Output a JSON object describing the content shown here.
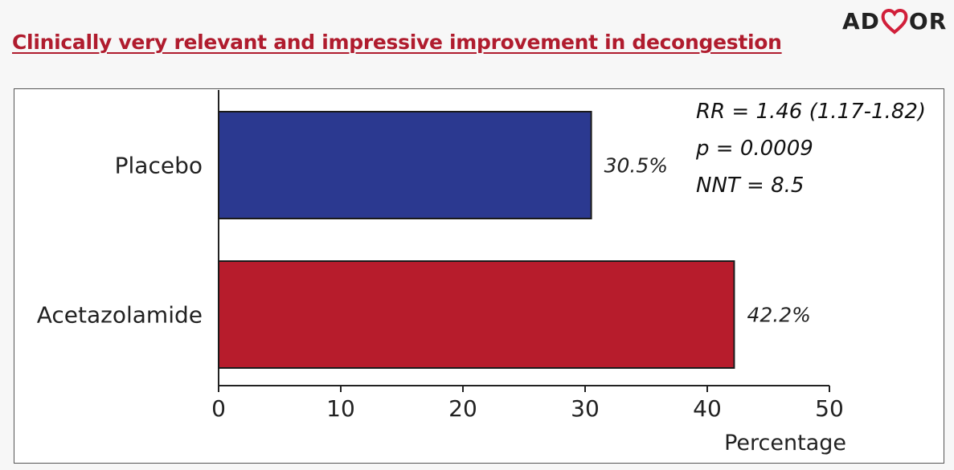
{
  "slide": {
    "title": "Clinically very relevant and impressive improvement in decongestion",
    "logo": {
      "text_left": "AD",
      "text_right": "OR",
      "icon": "heart-icon",
      "heart_color": "#d11f3a"
    },
    "stats": [
      "RR = 1.46 (1.17-1.82)",
      "p = 0.0009",
      "NNT = 8.5"
    ]
  },
  "chart_data": {
    "type": "bar",
    "orientation": "horizontal",
    "categories": [
      "Placebo",
      "Acetazolamide"
    ],
    "values": [
      30.5,
      42.2
    ],
    "value_labels": [
      "30.5%",
      "42.2%"
    ],
    "colors": [
      "#2b3990",
      "#b71c2c"
    ],
    "title": "",
    "xlabel": "Percentage",
    "ylabel": "",
    "xlim": [
      0,
      50
    ],
    "xticks": [
      0,
      10,
      20,
      30,
      40,
      50
    ],
    "grid": false,
    "legend": "none"
  }
}
